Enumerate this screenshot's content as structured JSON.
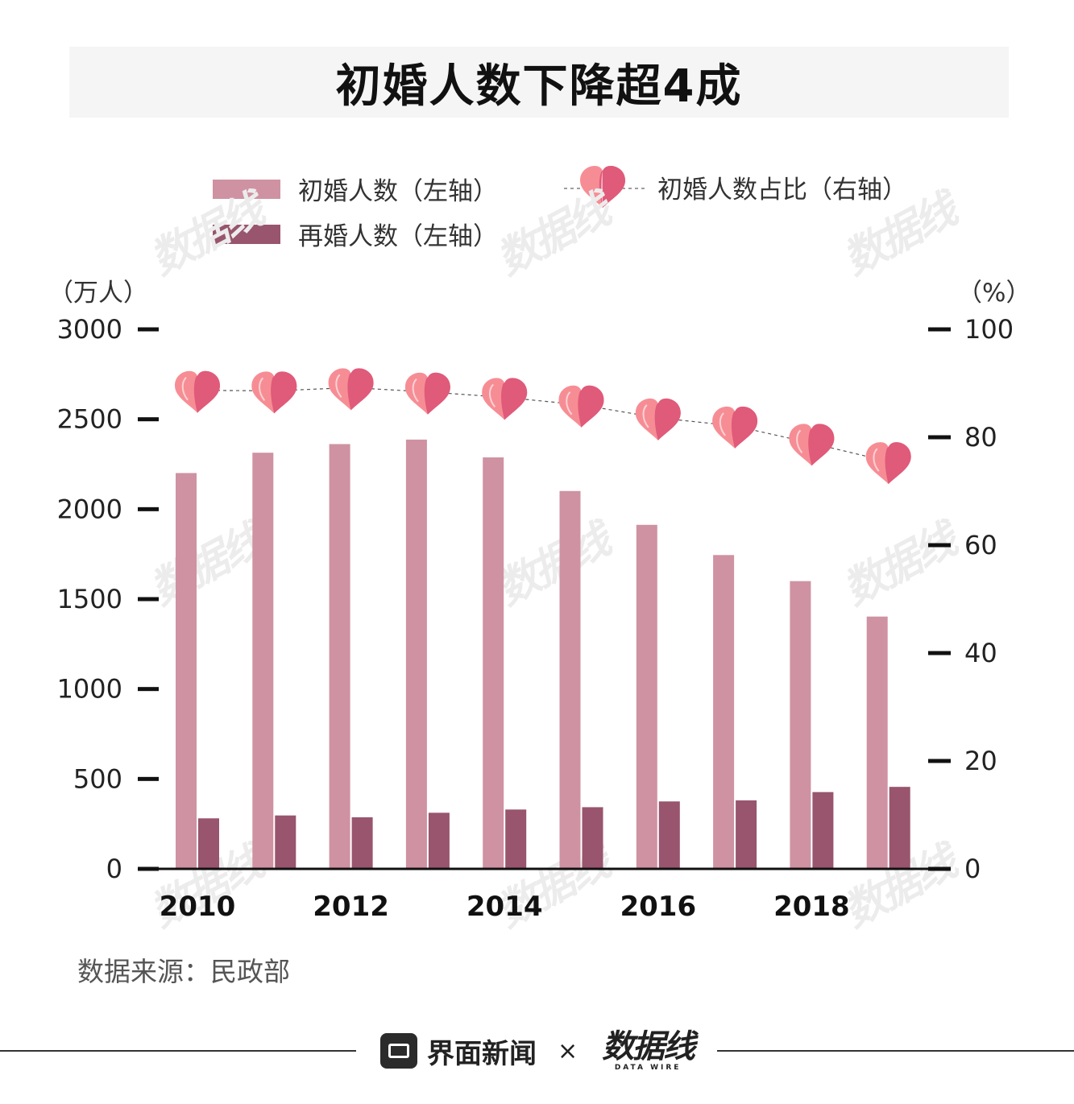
{
  "title": "初婚人数下降超4成",
  "legend": {
    "first": "初婚人数（左轴）",
    "re": "再婚人数（左轴）",
    "ratio": "初婚人数占比（右轴）"
  },
  "watermark_text": "数据线",
  "source": "数据来源：民政部",
  "footer": {
    "brand": "界面新闻",
    "times": "×",
    "logo": "数据线",
    "logo_sub": "DATA WIRE"
  },
  "colors": {
    "first_bar": "#cf92a2",
    "re_bar": "#98556d",
    "heart_light": "#f78d94",
    "heart_dark": "#e05a7a"
  },
  "chart_data": {
    "type": "bar",
    "x": [
      2010,
      2011,
      2012,
      2013,
      2014,
      2015,
      2016,
      2017,
      2018,
      2019
    ],
    "tick_labels": [
      "2010",
      "2012",
      "2014",
      "2016",
      "2018"
    ],
    "left_axis": {
      "unit": "（万人）",
      "ticks": [
        "3000",
        "2500",
        "2000",
        "1500",
        "1000",
        "500",
        "0"
      ],
      "ylim": [
        0,
        3000
      ]
    },
    "right_axis": {
      "unit": "（%）",
      "ticks": [
        "100",
        "80",
        "60",
        "40",
        "20",
        "0"
      ],
      "ylim": [
        0,
        100
      ]
    },
    "series": [
      {
        "name": "初婚人数（左轴）",
        "axis": "left",
        "kind": "bar",
        "values": [
          2201,
          2314,
          2362,
          2387,
          2288,
          2101,
          1913,
          1745,
          1600,
          1403
        ]
      },
      {
        "name": "再婚人数（左轴）",
        "axis": "left",
        "kind": "bar",
        "values": [
          281,
          297,
          287,
          312,
          330,
          343,
          375,
          381,
          427,
          456
        ]
      },
      {
        "name": "初婚人数占比（右轴）",
        "axis": "right",
        "kind": "line",
        "values": [
          88.7,
          88.6,
          89.2,
          88.4,
          87.4,
          86.0,
          83.6,
          82.1,
          78.9,
          75.5
        ]
      }
    ]
  }
}
